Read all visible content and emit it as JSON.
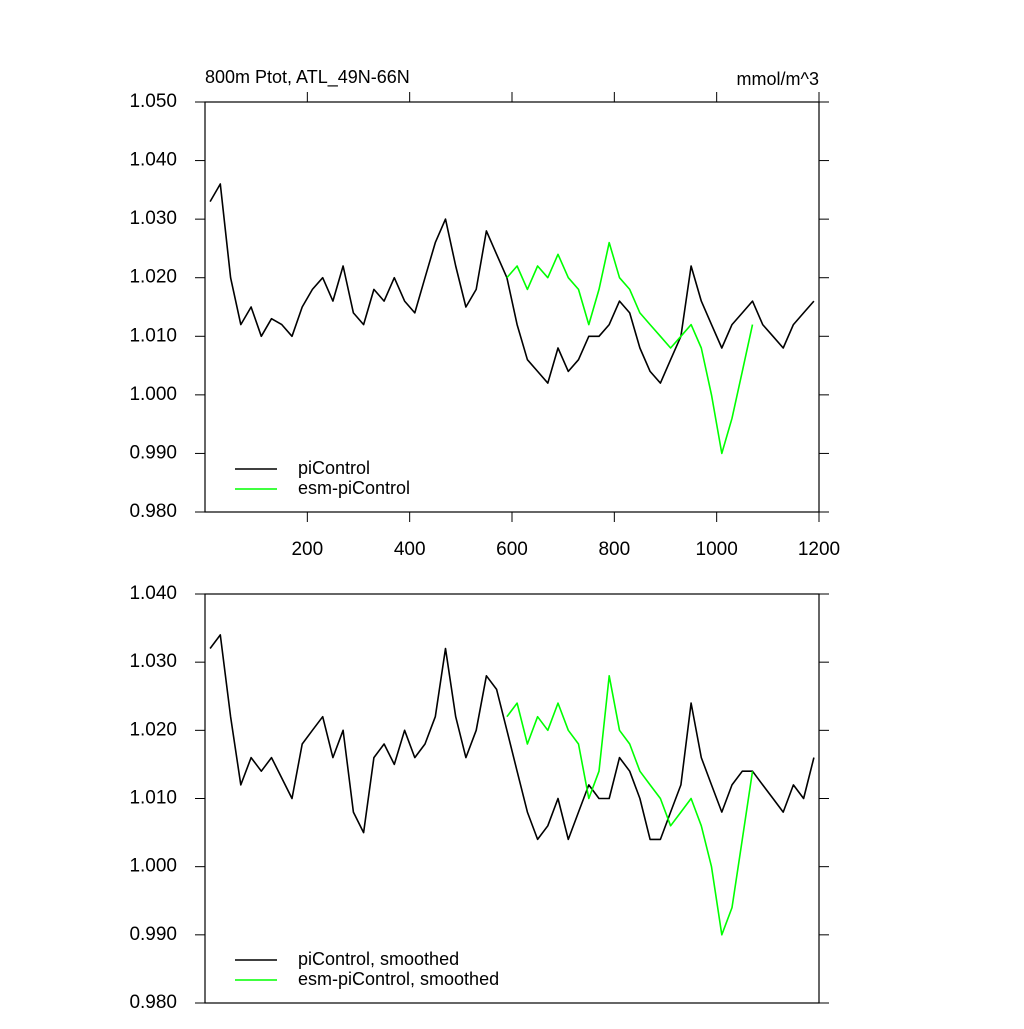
{
  "chart_data": [
    {
      "type": "line",
      "title": "800m Ptot, ATL_49N-66N",
      "units": "mmol/m^3",
      "xlim": [
        0,
        1200
      ],
      "xticks": [
        200,
        400,
        600,
        800,
        1000,
        1200
      ],
      "ylim": [
        0.98,
        1.05
      ],
      "yticks": [
        {
          "value": 0.98,
          "label": "0.980"
        },
        {
          "value": 0.99,
          "label": "0.990"
        },
        {
          "value": 1.0,
          "label": "1.000"
        },
        {
          "value": 1.01,
          "label": "1.010"
        },
        {
          "value": 1.02,
          "label": "1.020"
        },
        {
          "value": 1.03,
          "label": "1.030"
        },
        {
          "value": 1.04,
          "label": "1.040"
        },
        {
          "value": 1.05,
          "label": "1.050"
        }
      ],
      "x": [
        10,
        30,
        50,
        70,
        90,
        110,
        130,
        150,
        170,
        190,
        210,
        230,
        250,
        270,
        290,
        310,
        330,
        350,
        370,
        390,
        410,
        430,
        450,
        470,
        490,
        510,
        530,
        550,
        570,
        590,
        610,
        630,
        650,
        670,
        690,
        710,
        730,
        750,
        770,
        790,
        810,
        830,
        850,
        870,
        890,
        910,
        930,
        950,
        970,
        990,
        1010,
        1030,
        1050,
        1070,
        1090,
        1110,
        1130,
        1150,
        1170,
        1190
      ],
      "series": [
        {
          "name": "piControl",
          "color": "#000000",
          "values": [
            1.033,
            1.036,
            1.02,
            1.012,
            1.015,
            1.01,
            1.013,
            1.012,
            1.01,
            1.015,
            1.018,
            1.02,
            1.016,
            1.022,
            1.014,
            1.012,
            1.018,
            1.016,
            1.02,
            1.016,
            1.014,
            1.02,
            1.026,
            1.03,
            1.022,
            1.015,
            1.018,
            1.028,
            1.024,
            1.02,
            1.012,
            1.006,
            1.004,
            1.002,
            1.008,
            1.004,
            1.006,
            1.01,
            1.01,
            1.012,
            1.016,
            1.014,
            1.008,
            1.004,
            1.002,
            1.006,
            1.01,
            1.022,
            1.016,
            1.012,
            1.008,
            1.012,
            1.014,
            1.016,
            1.012,
            1.01,
            1.008,
            1.012,
            1.014,
            1.016
          ]
        },
        {
          "name": "esm-piControl",
          "color": "#00ff00",
          "values": [
            null,
            null,
            null,
            null,
            null,
            null,
            null,
            null,
            null,
            null,
            null,
            null,
            null,
            null,
            null,
            null,
            null,
            null,
            null,
            null,
            null,
            null,
            null,
            null,
            null,
            null,
            null,
            null,
            null,
            1.02,
            1.022,
            1.018,
            1.022,
            1.02,
            1.024,
            1.02,
            1.018,
            1.012,
            1.018,
            1.026,
            1.02,
            1.018,
            1.014,
            1.012,
            1.01,
            1.008,
            1.01,
            1.012,
            1.008,
            1.0,
            0.99,
            0.996,
            1.004,
            1.012,
            null,
            null,
            null,
            null,
            null,
            null
          ]
        }
      ]
    },
    {
      "type": "line",
      "xlim": [
        0,
        1200
      ],
      "ylim": [
        0.98,
        1.04
      ],
      "yticks": [
        {
          "value": 0.98,
          "label": "0.980"
        },
        {
          "value": 0.99,
          "label": "0.990"
        },
        {
          "value": 1.0,
          "label": "1.000"
        },
        {
          "value": 1.01,
          "label": "1.010"
        },
        {
          "value": 1.02,
          "label": "1.020"
        },
        {
          "value": 1.03,
          "label": "1.030"
        },
        {
          "value": 1.04,
          "label": "1.040"
        }
      ],
      "x": [
        10,
        30,
        50,
        70,
        90,
        110,
        130,
        150,
        170,
        190,
        210,
        230,
        250,
        270,
        290,
        310,
        330,
        350,
        370,
        390,
        410,
        430,
        450,
        470,
        490,
        510,
        530,
        550,
        570,
        590,
        610,
        630,
        650,
        670,
        690,
        710,
        730,
        750,
        770,
        790,
        810,
        830,
        850,
        870,
        890,
        910,
        930,
        950,
        970,
        990,
        1010,
        1030,
        1050,
        1070,
        1090,
        1110,
        1130,
        1150,
        1170,
        1190
      ],
      "series": [
        {
          "name": "piControl, smoothed",
          "color": "#000000",
          "values": [
            1.032,
            1.034,
            1.022,
            1.012,
            1.016,
            1.014,
            1.016,
            1.013,
            1.01,
            1.018,
            1.02,
            1.022,
            1.016,
            1.02,
            1.008,
            1.005,
            1.016,
            1.018,
            1.015,
            1.02,
            1.016,
            1.018,
            1.022,
            1.032,
            1.022,
            1.016,
            1.02,
            1.028,
            1.026,
            1.02,
            1.014,
            1.008,
            1.004,
            1.006,
            1.01,
            1.004,
            1.008,
            1.012,
            1.01,
            1.01,
            1.016,
            1.014,
            1.01,
            1.004,
            1.004,
            1.008,
            1.012,
            1.024,
            1.016,
            1.012,
            1.008,
            1.012,
            1.014,
            1.014,
            1.012,
            1.01,
            1.008,
            1.012,
            1.01,
            1.016
          ]
        },
        {
          "name": "esm-piControl, smoothed",
          "color": "#00ff00",
          "values": [
            null,
            null,
            null,
            null,
            null,
            null,
            null,
            null,
            null,
            null,
            null,
            null,
            null,
            null,
            null,
            null,
            null,
            null,
            null,
            null,
            null,
            null,
            null,
            null,
            null,
            null,
            null,
            null,
            null,
            1.022,
            1.024,
            1.018,
            1.022,
            1.02,
            1.024,
            1.02,
            1.018,
            1.01,
            1.014,
            1.028,
            1.02,
            1.018,
            1.014,
            1.012,
            1.01,
            1.006,
            1.008,
            1.01,
            1.006,
            1.0,
            0.99,
            0.994,
            1.004,
            1.014,
            null,
            null,
            null,
            null,
            null,
            null
          ]
        }
      ]
    }
  ]
}
